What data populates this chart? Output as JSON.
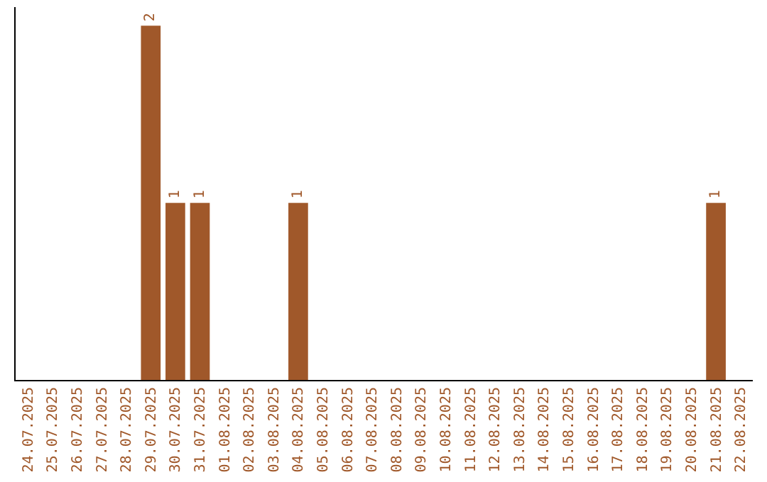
{
  "chart_data": {
    "type": "bar",
    "categories": [
      "24.07.2025",
      "25.07.2025",
      "26.07.2025",
      "27.07.2025",
      "28.07.2025",
      "29.07.2025",
      "30.07.2025",
      "31.07.2025",
      "01.08.2025",
      "02.08.2025",
      "03.08.2025",
      "04.08.2025",
      "05.08.2025",
      "06.08.2025",
      "07.08.2025",
      "08.08.2025",
      "09.08.2025",
      "10.08.2025",
      "11.08.2025",
      "12.08.2025",
      "13.08.2025",
      "14.08.2025",
      "15.08.2025",
      "16.08.2025",
      "17.08.2025",
      "18.08.2025",
      "19.08.2025",
      "20.08.2025",
      "21.08.2025",
      "22.08.2025"
    ],
    "values": [
      0,
      0,
      0,
      0,
      0,
      2,
      1,
      1,
      0,
      0,
      0,
      1,
      0,
      0,
      0,
      0,
      0,
      0,
      0,
      0,
      0,
      0,
      0,
      0,
      0,
      0,
      0,
      0,
      1,
      0
    ],
    "value_labels": [
      null,
      null,
      null,
      null,
      null,
      "2",
      "1",
      "1",
      null,
      null,
      null,
      "1",
      null,
      null,
      null,
      null,
      null,
      null,
      null,
      null,
      null,
      null,
      null,
      null,
      null,
      null,
      null,
      null,
      "1",
      null
    ],
    "color": "#a0582a"
  }
}
